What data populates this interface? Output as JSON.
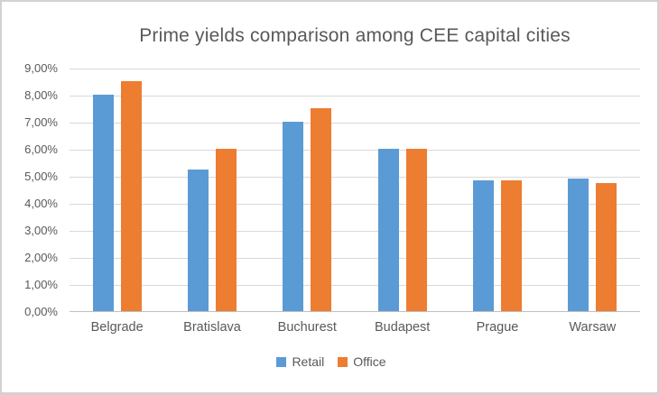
{
  "chart_data": {
    "type": "bar",
    "title": "Prime yields comparison among CEE capital cities",
    "categories": [
      "Belgrade",
      "Bratislava",
      "Buchurest",
      "Budapest",
      "Prague",
      "Warsaw"
    ],
    "series": [
      {
        "name": "Retail",
        "color": "#5B9BD5",
        "values": [
          8.0,
          5.25,
          7.0,
          6.0,
          4.85,
          4.9
        ]
      },
      {
        "name": "Office",
        "color": "#ED7D31",
        "values": [
          8.5,
          6.0,
          7.5,
          6.0,
          4.85,
          4.75
        ]
      }
    ],
    "xlabel": "",
    "ylabel": "",
    "ylim": [
      0,
      9
    ],
    "y_tick_step": 1,
    "y_tick_labels": [
      "9,00%",
      "8,00%",
      "7,00%",
      "6,00%",
      "5,00%",
      "4,00%",
      "3,00%",
      "2,00%",
      "1,00%",
      "0,00%"
    ],
    "grid": true,
    "legend_position": "bottom",
    "value_suffix": "%",
    "decimal_separator": ","
  },
  "style": {
    "text_color": "#595959",
    "gridline_color": "#D9D9D9",
    "axis_color": "#BFBFBF",
    "background": "#FFFFFF",
    "frame_border_color": "#D2D2D2"
  }
}
